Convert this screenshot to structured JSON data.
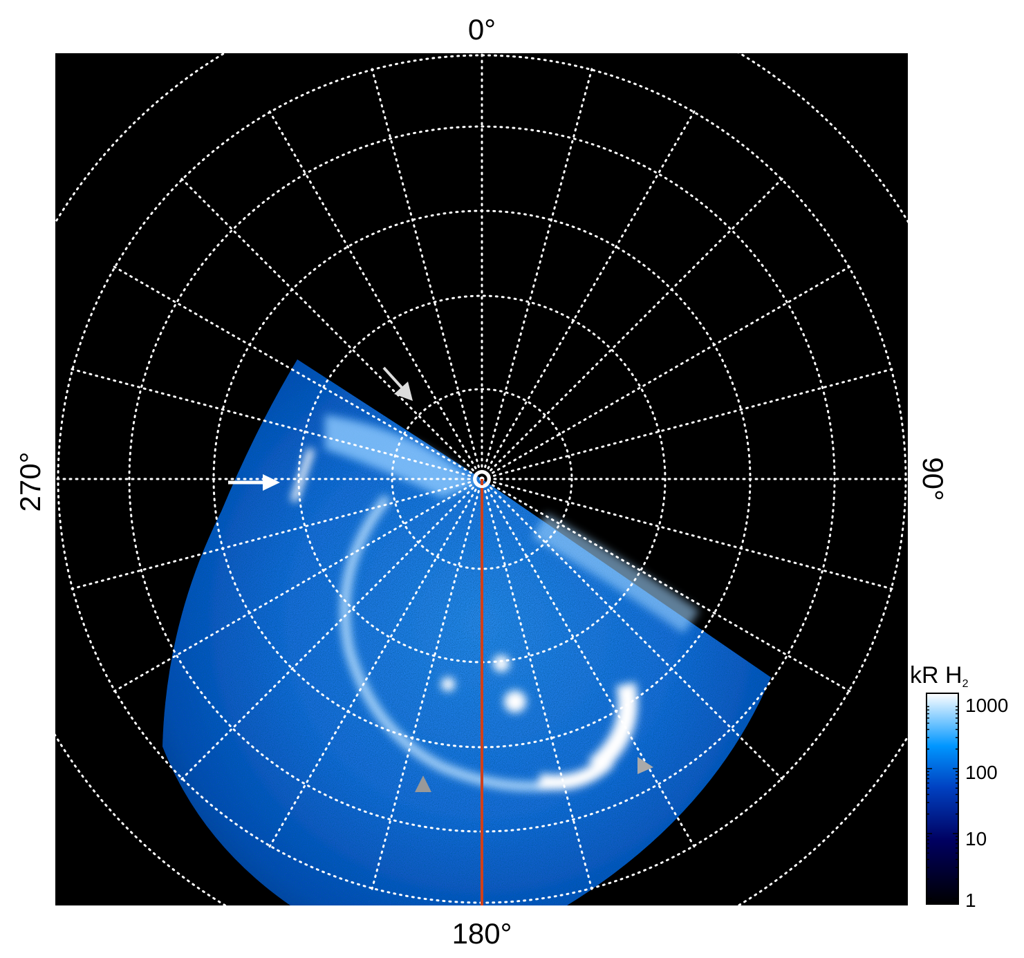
{
  "figure": {
    "projection": "polar",
    "longitude_labels": {
      "top": "0°",
      "right": "90°",
      "bottom": "180°",
      "left": "270°"
    },
    "colors": {
      "background": "#000000",
      "grid": "#ffffff",
      "meridian_line": "#d0401a",
      "arrow_white": "#ffffff",
      "arrow_gray": "#b4b4b4"
    },
    "grid": true,
    "arrows": [
      "white-arrow-dusk",
      "gray-arrow-noon",
      "gray-arrow-bottom-left",
      "gray-arrow-bottom-right"
    ]
  },
  "colorbar": {
    "title": "kR H",
    "title_subscript": "2",
    "scale": "log",
    "range": [
      1,
      1000
    ],
    "ticks": [
      "1000",
      "100",
      "10",
      "1"
    ],
    "colors": [
      "#000000",
      "#000060",
      "#0040c0",
      "#0096ff",
      "#ffffff"
    ]
  }
}
